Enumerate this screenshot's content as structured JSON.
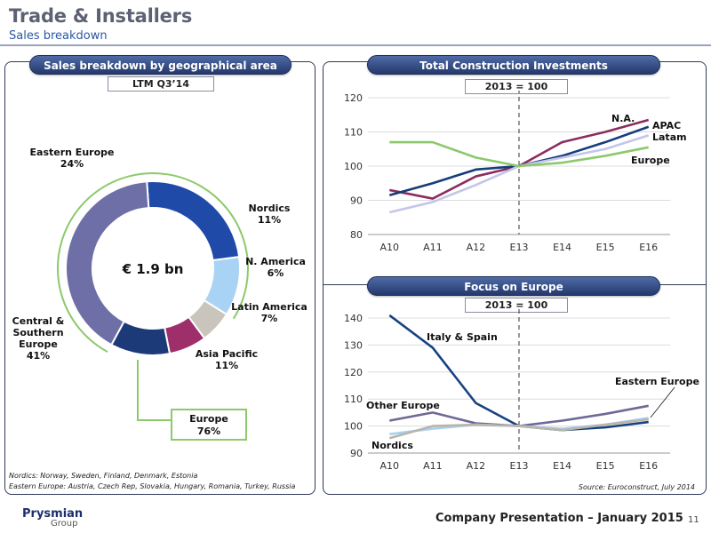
{
  "slide": {
    "title": "Trade & Installers",
    "subtitle": "Sales breakdown",
    "footer_brand": "Prysmian",
    "footer_group": "Group",
    "footer_text": "Company Presentation – January 2015",
    "page_number": "11"
  },
  "left_panel": {
    "heading": "Sales breakdown by geographical area",
    "period": "LTM Q3’14",
    "center_label": "€ 1.9 bn",
    "europe_box_name": "Europe",
    "europe_box_value": "76%",
    "footnote_line1": "Nordics: Norway, Sweden, Finland, Denmark, Estonia",
    "footnote_line2": "Eastern Europe: Austria, Czech Rep, Slovakia, Hungary, Romania, Turkey, Russia"
  },
  "right_panel": {
    "heading_top": "Total Construction Investments",
    "base_top": "2013 = 100",
    "heading_bottom": "Focus on Europe",
    "base_bottom": "2013 = 100",
    "source": "Source: Euroconstruct, July 2014"
  },
  "chart_data": [
    {
      "type": "pie",
      "title": "Sales breakdown by geographical area",
      "categories": [
        "Eastern Europe",
        "Nordics",
        "N. America",
        "Latin America",
        "Asia Pacific",
        "Central & Southern Europe"
      ],
      "values": [
        24,
        11,
        6,
        7,
        11,
        41
      ],
      "labels": [
        "Eastern Europe\n24%",
        "Nordics\n11%",
        "N. America\n6%",
        "Latin America\n7%",
        "Asia Pacific\n11%",
        "Central &\nSouthern\nEurope\n41%"
      ],
      "colors": [
        "#1f4aa8",
        "#a9d3f5",
        "#c9c5bc",
        "#9e2f6a",
        "#1d3a78",
        "#6f6fa8"
      ],
      "center_text": "€ 1.9 bn"
    },
    {
      "type": "line",
      "title": "Total Construction Investments",
      "categories": [
        "A10",
        "A11",
        "A12",
        "E13",
        "E14",
        "E15",
        "E16"
      ],
      "ylim": [
        80,
        120
      ],
      "yticks": [
        80,
        90,
        100,
        110,
        120
      ],
      "series": [
        {
          "name": "N.A.",
          "color": "#8b2d5f",
          "values": [
            93,
            90.5,
            97,
            100,
            107,
            110,
            113.5
          ]
        },
        {
          "name": "APAC",
          "color": "#143d7a",
          "values": [
            91.5,
            95,
            99,
            100,
            103,
            107,
            111.5
          ]
        },
        {
          "name": "Latam",
          "color": "#c3c6e8",
          "values": [
            86.5,
            89.5,
            94.5,
            100,
            102.5,
            105,
            109
          ]
        },
        {
          "name": "Europe",
          "color": "#8cc96b",
          "values": [
            107,
            107,
            102.5,
            100,
            101,
            103,
            105.5
          ]
        }
      ],
      "marker_line_at": "E13"
    },
    {
      "type": "line",
      "title": "Focus on Europe",
      "categories": [
        "A10",
        "A11",
        "A12",
        "E13",
        "E14",
        "E15",
        "E16"
      ],
      "ylim": [
        90,
        140
      ],
      "yticks": [
        90,
        100,
        110,
        120,
        130,
        140
      ],
      "series": [
        {
          "name": "Italy & Spain",
          "color": "#17427f",
          "values": [
            141,
            129,
            108.5,
            100,
            98.5,
            99.5,
            101.5
          ]
        },
        {
          "name": "Other Europe",
          "color": "#6e6896",
          "values": [
            102,
            105,
            101,
            100,
            102,
            104.5,
            107.5
          ]
        },
        {
          "name": "Eastern Europe",
          "color": "#a5d2f4",
          "values": [
            97,
            99,
            100.5,
            100,
            99,
            100.5,
            103
          ]
        },
        {
          "name": "Nordics",
          "color": "#b9b5aa",
          "values": [
            95.5,
            100,
            100.5,
            100,
            98.5,
            100.5,
            102.5
          ]
        }
      ],
      "marker_line_at": "E13"
    }
  ]
}
